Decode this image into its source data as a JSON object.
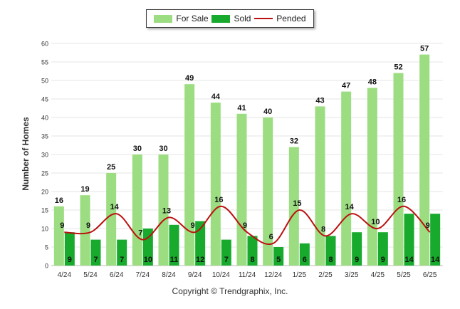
{
  "chart_data": {
    "type": "bar",
    "ylabel": "Number of Homes",
    "ylim": [
      0,
      60
    ],
    "yticks": [
      0,
      5,
      10,
      15,
      20,
      25,
      30,
      35,
      40,
      45,
      50,
      55,
      60
    ],
    "categories": [
      "4/24",
      "5/24",
      "6/24",
      "7/24",
      "8/24",
      "9/24",
      "10/24",
      "11/24",
      "12/24",
      "1/25",
      "2/25",
      "3/25",
      "4/25",
      "5/25",
      "6/25"
    ],
    "series": [
      {
        "name": "For Sale",
        "type": "bar",
        "color": "#9bdd80",
        "values": [
          16,
          19,
          25,
          30,
          30,
          49,
          44,
          41,
          40,
          32,
          43,
          47,
          48,
          52,
          57
        ]
      },
      {
        "name": "Sold",
        "type": "bar",
        "color": "#18aa2c",
        "values": [
          9,
          7,
          7,
          10,
          11,
          12,
          7,
          8,
          5,
          6,
          8,
          9,
          9,
          14,
          14
        ]
      },
      {
        "name": "Pended",
        "type": "line",
        "color": "#bb1111",
        "values": [
          9,
          9,
          14,
          7,
          13,
          9,
          16,
          9,
          6,
          15,
          8,
          14,
          10,
          16,
          9
        ]
      }
    ],
    "legend_position": "top-center",
    "grid": true
  },
  "footer": {
    "copyright": "Copyright © Trendgraphix, Inc."
  }
}
